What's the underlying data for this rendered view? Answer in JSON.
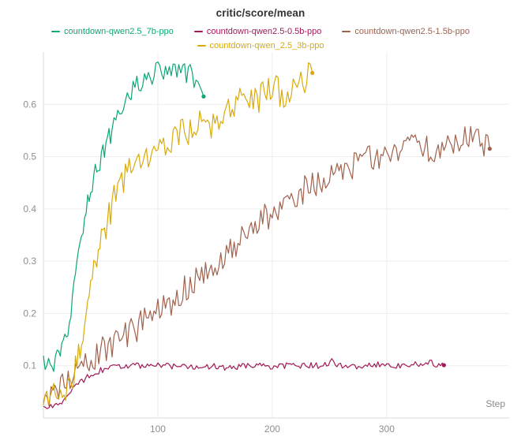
{
  "chart_data": {
    "type": "line",
    "title": "critic/score/mean",
    "xlabel": "Step",
    "ylabel": "",
    "x_ticks": [
      100,
      200,
      300
    ],
    "y_ticks": [
      0.1,
      0.2,
      0.3,
      0.4,
      0.5,
      0.6
    ],
    "xlim": [
      0,
      407
    ],
    "ylim": [
      0,
      0.7
    ],
    "grid": true,
    "legend_position": "top",
    "axis_color": "#d9d9d9",
    "grid_color": "#ededed",
    "series": [
      {
        "name": "countdown-qwen2.5_7b-ppo",
        "color": "#0ca678",
        "noise": 0.02,
        "end_dot": true,
        "points": [
          [
            0,
            0.1
          ],
          [
            6,
            0.102
          ],
          [
            12,
            0.11
          ],
          [
            16,
            0.125
          ],
          [
            20,
            0.15
          ],
          [
            24,
            0.2
          ],
          [
            28,
            0.27
          ],
          [
            32,
            0.33
          ],
          [
            36,
            0.39
          ],
          [
            40,
            0.43
          ],
          [
            44,
            0.46
          ],
          [
            48,
            0.485
          ],
          [
            52,
            0.51
          ],
          [
            56,
            0.53
          ],
          [
            60,
            0.55
          ],
          [
            65,
            0.575
          ],
          [
            70,
            0.6
          ],
          [
            75,
            0.62
          ],
          [
            80,
            0.635
          ],
          [
            85,
            0.645
          ],
          [
            90,
            0.65
          ],
          [
            95,
            0.655
          ],
          [
            100,
            0.662
          ],
          [
            105,
            0.668
          ],
          [
            110,
            0.672
          ],
          [
            115,
            0.66
          ],
          [
            120,
            0.668
          ],
          [
            125,
            0.655
          ],
          [
            130,
            0.66
          ],
          [
            135,
            0.635
          ],
          [
            140,
            0.615
          ]
        ]
      },
      {
        "name": "countdown-qwen2.5-0.5b-ppo",
        "color": "#a01a58",
        "noise": 0.006,
        "end_dot": true,
        "points": [
          [
            0,
            0.018
          ],
          [
            8,
            0.022
          ],
          [
            16,
            0.03
          ],
          [
            24,
            0.05
          ],
          [
            32,
            0.068
          ],
          [
            40,
            0.082
          ],
          [
            50,
            0.092
          ],
          [
            60,
            0.097
          ],
          [
            80,
            0.1
          ],
          [
            100,
            0.1
          ],
          [
            120,
            0.098
          ],
          [
            140,
            0.1
          ],
          [
            160,
            0.097
          ],
          [
            180,
            0.1
          ],
          [
            200,
            0.099
          ],
          [
            220,
            0.1
          ],
          [
            240,
            0.1
          ],
          [
            252,
            0.108
          ],
          [
            258,
            0.1
          ],
          [
            280,
            0.099
          ],
          [
            300,
            0.104
          ],
          [
            310,
            0.099
          ],
          [
            325,
            0.103
          ],
          [
            336,
            0.108
          ],
          [
            344,
            0.1
          ],
          [
            350,
            0.101
          ]
        ]
      },
      {
        "name": "countdown-qwen2.5-1.5b-ppo",
        "color": "#a0624d",
        "noise": 0.028,
        "end_dot": true,
        "points": [
          [
            0,
            0.045
          ],
          [
            10,
            0.055
          ],
          [
            20,
            0.068
          ],
          [
            30,
            0.085
          ],
          [
            40,
            0.105
          ],
          [
            50,
            0.125
          ],
          [
            60,
            0.14
          ],
          [
            70,
            0.155
          ],
          [
            80,
            0.17
          ],
          [
            90,
            0.185
          ],
          [
            100,
            0.2
          ],
          [
            110,
            0.22
          ],
          [
            120,
            0.24
          ],
          [
            130,
            0.255
          ],
          [
            140,
            0.275
          ],
          [
            150,
            0.295
          ],
          [
            160,
            0.315
          ],
          [
            170,
            0.335
          ],
          [
            180,
            0.355
          ],
          [
            190,
            0.375
          ],
          [
            200,
            0.395
          ],
          [
            210,
            0.415
          ],
          [
            220,
            0.43
          ],
          [
            230,
            0.44
          ],
          [
            240,
            0.455
          ],
          [
            250,
            0.465
          ],
          [
            260,
            0.475
          ],
          [
            270,
            0.485
          ],
          [
            280,
            0.495
          ],
          [
            290,
            0.5
          ],
          [
            300,
            0.51
          ],
          [
            310,
            0.515
          ],
          [
            320,
            0.52
          ],
          [
            330,
            0.525
          ],
          [
            340,
            0.515
          ],
          [
            350,
            0.53
          ],
          [
            360,
            0.52
          ],
          [
            370,
            0.545
          ],
          [
            380,
            0.54
          ],
          [
            390,
            0.515
          ]
        ]
      },
      {
        "name": "countdown-qwen_2.5_3b-ppo",
        "color": "#d9ab0a",
        "noise": 0.03,
        "end_dot": true,
        "points": [
          [
            0,
            0.03
          ],
          [
            6,
            0.035
          ],
          [
            12,
            0.04
          ],
          [
            18,
            0.05
          ],
          [
            24,
            0.07
          ],
          [
            28,
            0.1
          ],
          [
            32,
            0.14
          ],
          [
            36,
            0.19
          ],
          [
            40,
            0.24
          ],
          [
            44,
            0.29
          ],
          [
            48,
            0.32
          ],
          [
            52,
            0.35
          ],
          [
            56,
            0.38
          ],
          [
            60,
            0.41
          ],
          [
            65,
            0.435
          ],
          [
            70,
            0.46
          ],
          [
            75,
            0.475
          ],
          [
            80,
            0.485
          ],
          [
            85,
            0.495
          ],
          [
            90,
            0.505
          ],
          [
            95,
            0.5
          ],
          [
            100,
            0.515
          ],
          [
            110,
            0.525
          ],
          [
            120,
            0.545
          ],
          [
            130,
            0.555
          ],
          [
            140,
            0.565
          ],
          [
            150,
            0.555
          ],
          [
            160,
            0.595
          ],
          [
            170,
            0.605
          ],
          [
            180,
            0.6
          ],
          [
            190,
            0.615
          ],
          [
            200,
            0.628
          ],
          [
            210,
            0.62
          ],
          [
            220,
            0.638
          ],
          [
            230,
            0.648
          ],
          [
            235,
            0.66
          ]
        ]
      }
    ]
  }
}
